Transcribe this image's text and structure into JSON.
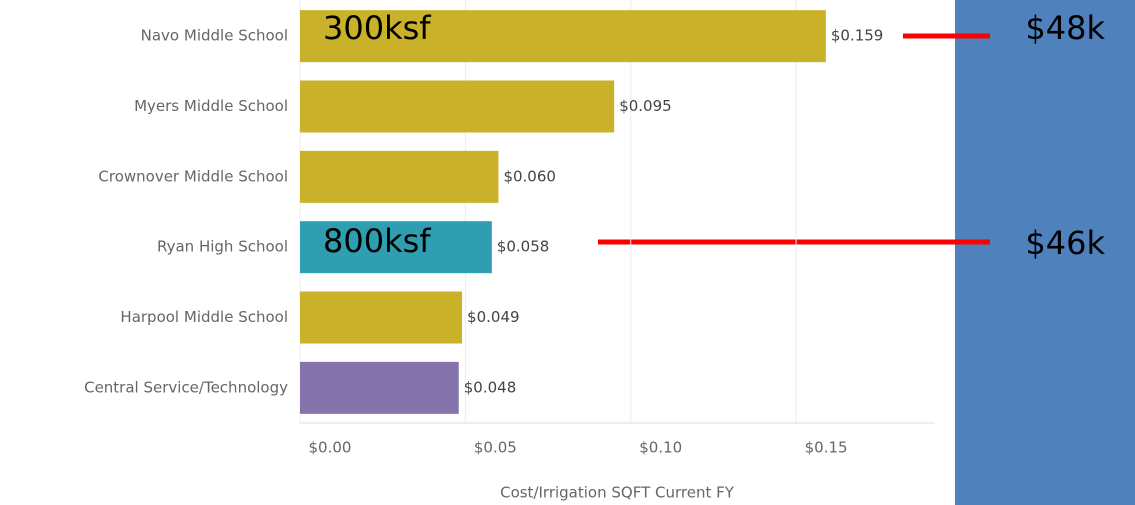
{
  "chart_data": {
    "type": "bar",
    "orientation": "horizontal",
    "categories": [
      "Navo Middle School",
      "Myers Middle School",
      "Crownover Middle School",
      "Ryan High School",
      "Harpool Middle School",
      "Central Service/Technology"
    ],
    "values": [
      0.159,
      0.095,
      0.06,
      0.058,
      0.049,
      0.048
    ],
    "value_labels": [
      "$0.159",
      "$0.095",
      "$0.060",
      "$0.058",
      "$0.049",
      "$0.048"
    ],
    "colors": [
      "#c9b12a",
      "#c9b12a",
      "#c9b12a",
      "#2e9eb0",
      "#c9b12a",
      "#8474ab"
    ],
    "xlim": [
      0,
      0.192
    ],
    "xticks": [
      {
        "value": 0,
        "label": "$0.00"
      },
      {
        "value": 0.05,
        "label": "$0.05"
      },
      {
        "value": 0.1,
        "label": "$0.10"
      },
      {
        "value": 0.15,
        "label": "$0.15"
      }
    ],
    "x_label": "Cost/Irrigation SQFT Current FY",
    "grid": true,
    "annotations": [
      "300ksf",
      "800ksf",
      "$48k",
      "$46k"
    ]
  }
}
